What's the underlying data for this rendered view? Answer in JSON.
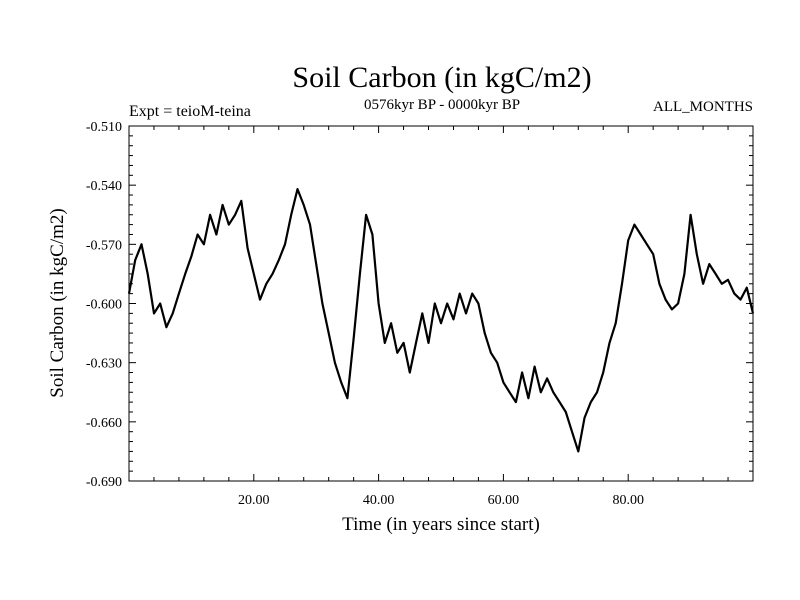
{
  "chart_data": {
    "type": "line",
    "title": "Soil Carbon (in kgC/m2)",
    "subtitle": "0576kyr BP - 0000kyr BP",
    "left_label": "Expt = teioM-teina",
    "right_label": "ALL_MONTHS",
    "xlabel": "Time (in years since start)",
    "ylabel": "Soil Carbon (in kgC/m2)",
    "xlim": [
      0,
      100
    ],
    "ylim": [
      -0.69,
      -0.51
    ],
    "x_ticks": [
      20,
      40,
      60,
      80
    ],
    "x_tick_labels": [
      "20.00",
      "40.00",
      "60.00",
      "80.00"
    ],
    "y_ticks": [
      -0.51,
      -0.54,
      -0.57,
      -0.6,
      -0.63,
      -0.66,
      -0.69
    ],
    "y_tick_labels": [
      "-0.510",
      "-0.540",
      "-0.570",
      "-0.600",
      "-0.630",
      "-0.660",
      "-0.690"
    ],
    "series": [
      {
        "name": "Soil Carbon",
        "color": "#000000",
        "x": [
          0,
          1,
          2,
          3,
          4,
          5,
          6,
          7,
          8,
          9,
          10,
          11,
          12,
          13,
          14,
          15,
          16,
          17,
          18,
          19,
          20,
          21,
          22,
          23,
          24,
          25,
          26,
          27,
          28,
          29,
          30,
          31,
          32,
          33,
          34,
          35,
          36,
          37,
          38,
          39,
          40,
          41,
          42,
          43,
          44,
          45,
          46,
          47,
          48,
          49,
          50,
          51,
          52,
          53,
          54,
          55,
          56,
          57,
          58,
          59,
          60,
          61,
          62,
          63,
          64,
          65,
          66,
          67,
          68,
          69,
          70,
          71,
          72,
          73,
          74,
          75,
          76,
          77,
          78,
          79,
          80,
          81,
          82,
          83,
          84,
          85,
          86,
          87,
          88,
          89,
          90,
          91,
          92,
          93,
          94,
          95,
          96,
          97,
          98,
          99,
          100
        ],
        "y": [
          -0.595,
          -0.578,
          -0.57,
          -0.585,
          -0.605,
          -0.6,
          -0.612,
          -0.605,
          -0.595,
          -0.585,
          -0.576,
          -0.565,
          -0.57,
          -0.555,
          -0.565,
          -0.55,
          -0.56,
          -0.555,
          -0.548,
          -0.572,
          -0.585,
          -0.598,
          -0.59,
          -0.585,
          -0.578,
          -0.57,
          -0.555,
          -0.542,
          -0.55,
          -0.56,
          -0.58,
          -0.6,
          -0.615,
          -0.63,
          -0.64,
          -0.648,
          -0.618,
          -0.585,
          -0.555,
          -0.565,
          -0.6,
          -0.62,
          -0.61,
          -0.625,
          -0.62,
          -0.635,
          -0.62,
          -0.605,
          -0.62,
          -0.6,
          -0.61,
          -0.6,
          -0.608,
          -0.595,
          -0.605,
          -0.595,
          -0.6,
          -0.615,
          -0.625,
          -0.63,
          -0.64,
          -0.645,
          -0.65,
          -0.635,
          -0.648,
          -0.632,
          -0.645,
          -0.638,
          -0.645,
          -0.65,
          -0.655,
          -0.665,
          -0.675,
          -0.658,
          -0.65,
          -0.645,
          -0.635,
          -0.62,
          -0.61,
          -0.59,
          -0.568,
          -0.56,
          -0.565,
          -0.57,
          -0.575,
          -0.59,
          -0.598,
          -0.603,
          -0.6,
          -0.585,
          -0.555,
          -0.575,
          -0.59,
          -0.58,
          -0.585,
          -0.59,
          -0.588,
          -0.595,
          -0.598,
          -0.592,
          -0.605
        ]
      }
    ]
  }
}
